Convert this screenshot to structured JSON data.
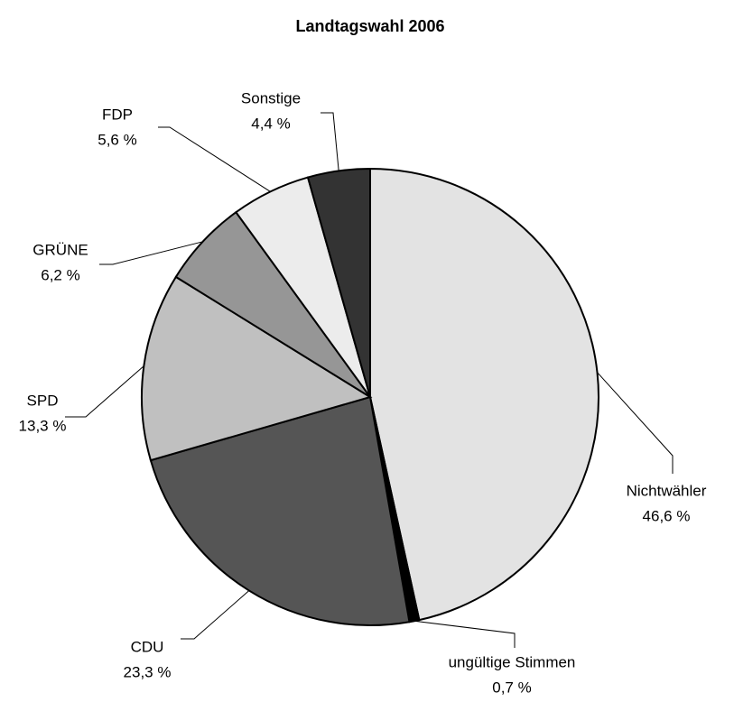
{
  "chart_data": {
    "type": "pie",
    "title": "Landtagswahl 2006",
    "categories": [
      "Nichtwähler",
      "ungültige Stimmen",
      "CDU",
      "SPD",
      "GRÜNE",
      "FDP",
      "Sonstige"
    ],
    "values": [
      46.6,
      0.7,
      23.3,
      13.3,
      6.2,
      5.6,
      4.4
    ],
    "value_labels": [
      "46,6 %",
      "0,7 %",
      "23,3 %",
      "13,3 %",
      "6,2 %",
      "5,6 %",
      "4,4 %"
    ],
    "colors": [
      "#e3e3e3",
      "#000000",
      "#555555",
      "#c0c0c0",
      "#969696",
      "#ececec",
      "#333333"
    ]
  }
}
